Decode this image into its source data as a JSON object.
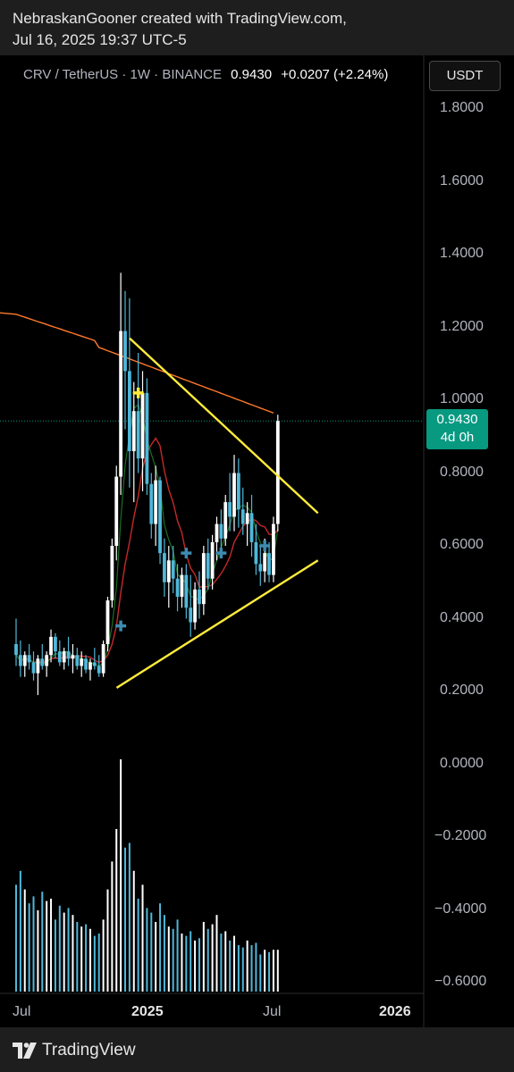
{
  "header": {
    "line1": "NebraskanGooner created with TradingView.com,",
    "line2": "Jul 16, 2025 19:37 UTC-5"
  },
  "legend": {
    "symbol": "CRV / TetherUS · 1W · BINANCE",
    "price": "0.9430",
    "change": "+0.0207 (+2.24%)"
  },
  "currency_button": "USDT",
  "price_tag": {
    "price": "0.9430",
    "countdown": "4d 0h"
  },
  "y_axis": [
    "1.8000",
    "1.6000",
    "1.4000",
    "1.2000",
    "1.0000",
    "0.8000",
    "0.6000",
    "0.4000",
    "0.2000",
    "0.0000",
    "−0.2000",
    "−0.4000",
    "−0.6000"
  ],
  "x_axis": [
    {
      "label": "Jul",
      "bold": false
    },
    {
      "label": "2025",
      "bold": true
    },
    {
      "label": "Jul",
      "bold": false
    },
    {
      "label": "2026",
      "bold": true
    }
  ],
  "footer": {
    "brand": "TradingView"
  },
  "colors": {
    "up_candle": "#ffffff",
    "down_candle": "#4fb8d9",
    "trendline": "#ffeb3b",
    "ma_long": "#ff7a2b",
    "ma_mid": "#c62828",
    "ma_short": "#1b6e20",
    "price_tag": "#089981"
  },
  "chart_data": {
    "type": "candlestick",
    "symbol": "CRV / TetherUS",
    "interval": "1W",
    "exchange": "BINANCE",
    "last_price": 0.943,
    "change": 0.0207,
    "change_pct": 2.24,
    "ylim": [
      -0.6,
      1.85
    ],
    "y_ticks": [
      1.8,
      1.6,
      1.4,
      1.2,
      1.0,
      0.8,
      0.6,
      0.4,
      0.2,
      0.0,
      -0.2,
      -0.4,
      -0.6
    ],
    "x_ticks": [
      "Jul",
      "2025",
      "Jul",
      "2026"
    ],
    "candles": [
      [
        0.33,
        0.4,
        0.27,
        0.3
      ],
      [
        0.3,
        0.34,
        0.24,
        0.27
      ],
      [
        0.27,
        0.31,
        0.24,
        0.3
      ],
      [
        0.3,
        0.33,
        0.26,
        0.28
      ],
      [
        0.28,
        0.31,
        0.23,
        0.25
      ],
      [
        0.25,
        0.3,
        0.19,
        0.29
      ],
      [
        0.29,
        0.33,
        0.26,
        0.27
      ],
      [
        0.27,
        0.31,
        0.24,
        0.3
      ],
      [
        0.3,
        0.37,
        0.28,
        0.35
      ],
      [
        0.35,
        0.36,
        0.29,
        0.31
      ],
      [
        0.31,
        0.34,
        0.27,
        0.28
      ],
      [
        0.28,
        0.32,
        0.26,
        0.31
      ],
      [
        0.31,
        0.35,
        0.27,
        0.29
      ],
      [
        0.29,
        0.33,
        0.25,
        0.3
      ],
      [
        0.3,
        0.32,
        0.26,
        0.27
      ],
      [
        0.27,
        0.31,
        0.24,
        0.29
      ],
      [
        0.29,
        0.3,
        0.25,
        0.26
      ],
      [
        0.26,
        0.29,
        0.23,
        0.28
      ],
      [
        0.28,
        0.32,
        0.26,
        0.27
      ],
      [
        0.27,
        0.3,
        0.24,
        0.25
      ],
      [
        0.25,
        0.34,
        0.24,
        0.33
      ],
      [
        0.33,
        0.46,
        0.31,
        0.45
      ],
      [
        0.45,
        0.62,
        0.43,
        0.6
      ],
      [
        0.6,
        0.82,
        0.56,
        0.79
      ],
      [
        0.79,
        1.35,
        0.74,
        1.19
      ],
      [
        1.19,
        1.3,
        0.92,
        1.08
      ],
      [
        1.08,
        1.28,
        0.76,
        0.86
      ],
      [
        0.86,
        1.05,
        0.72,
        0.97
      ],
      [
        0.97,
        1.13,
        0.8,
        0.84
      ],
      [
        0.84,
        1.08,
        0.75,
        1.02
      ],
      [
        1.02,
        1.06,
        0.74,
        0.77
      ],
      [
        0.77,
        0.8,
        0.62,
        0.66
      ],
      [
        0.66,
        0.82,
        0.6,
        0.78
      ],
      [
        0.78,
        0.79,
        0.55,
        0.58
      ],
      [
        0.58,
        0.62,
        0.46,
        0.5
      ],
      [
        0.5,
        0.6,
        0.43,
        0.56
      ],
      [
        0.56,
        0.6,
        0.47,
        0.51
      ],
      [
        0.51,
        0.55,
        0.42,
        0.46
      ],
      [
        0.46,
        0.54,
        0.43,
        0.52
      ],
      [
        0.52,
        0.55,
        0.4,
        0.43
      ],
      [
        0.43,
        0.52,
        0.35,
        0.39
      ],
      [
        0.39,
        0.5,
        0.37,
        0.48
      ],
      [
        0.48,
        0.53,
        0.4,
        0.44
      ],
      [
        0.44,
        0.6,
        0.41,
        0.58
      ],
      [
        0.58,
        0.62,
        0.48,
        0.51
      ],
      [
        0.51,
        0.63,
        0.48,
        0.61
      ],
      [
        0.61,
        0.68,
        0.56,
        0.66
      ],
      [
        0.66,
        0.7,
        0.59,
        0.62
      ],
      [
        0.62,
        0.74,
        0.6,
        0.72
      ],
      [
        0.72,
        0.8,
        0.64,
        0.68
      ],
      [
        0.68,
        0.85,
        0.64,
        0.8
      ],
      [
        0.8,
        0.84,
        0.65,
        0.7
      ],
      [
        0.7,
        0.76,
        0.63,
        0.66
      ],
      [
        0.66,
        0.72,
        0.6,
        0.69
      ],
      [
        0.69,
        0.74,
        0.57,
        0.61
      ],
      [
        0.61,
        0.66,
        0.52,
        0.55
      ],
      [
        0.55,
        0.6,
        0.49,
        0.53
      ],
      [
        0.53,
        0.62,
        0.5,
        0.58
      ],
      [
        0.58,
        0.61,
        0.5,
        0.52
      ],
      [
        0.52,
        0.68,
        0.5,
        0.66
      ],
      [
        0.66,
        0.96,
        0.64,
        0.943
      ]
    ],
    "volume": [
      0.46,
      0.52,
      0.44,
      0.38,
      0.41,
      0.35,
      0.43,
      0.39,
      0.4,
      0.31,
      0.37,
      0.34,
      0.36,
      0.33,
      0.3,
      0.28,
      0.29,
      0.27,
      0.24,
      0.25,
      0.31,
      0.44,
      0.56,
      0.7,
      1.0,
      0.62,
      0.64,
      0.52,
      0.4,
      0.46,
      0.36,
      0.34,
      0.3,
      0.38,
      0.33,
      0.28,
      0.27,
      0.31,
      0.25,
      0.24,
      0.26,
      0.22,
      0.23,
      0.3,
      0.27,
      0.29,
      0.33,
      0.25,
      0.26,
      0.22,
      0.24,
      0.2,
      0.19,
      0.22,
      0.2,
      0.21,
      0.16,
      0.18,
      0.17,
      0.18,
      0.18
    ],
    "ma_long": [
      1.24,
      1.21,
      1.18,
      1.15,
      1.12,
      1.09,
      1.07,
      1.05,
      1.03,
      1.02,
      1.01,
      1.0,
      0.99,
      0.985,
      0.98,
      0.97,
      0.965,
      0.96,
      0.955,
      0.95
    ],
    "trendlines": [
      {
        "from": [
          1.17,
          24
        ],
        "to": [
          0.69,
          61
        ],
        "color": "yellow"
      },
      {
        "from": [
          0.21,
          21
        ],
        "to": [
          0.56,
          61
        ],
        "color": "yellow"
      }
    ]
  }
}
